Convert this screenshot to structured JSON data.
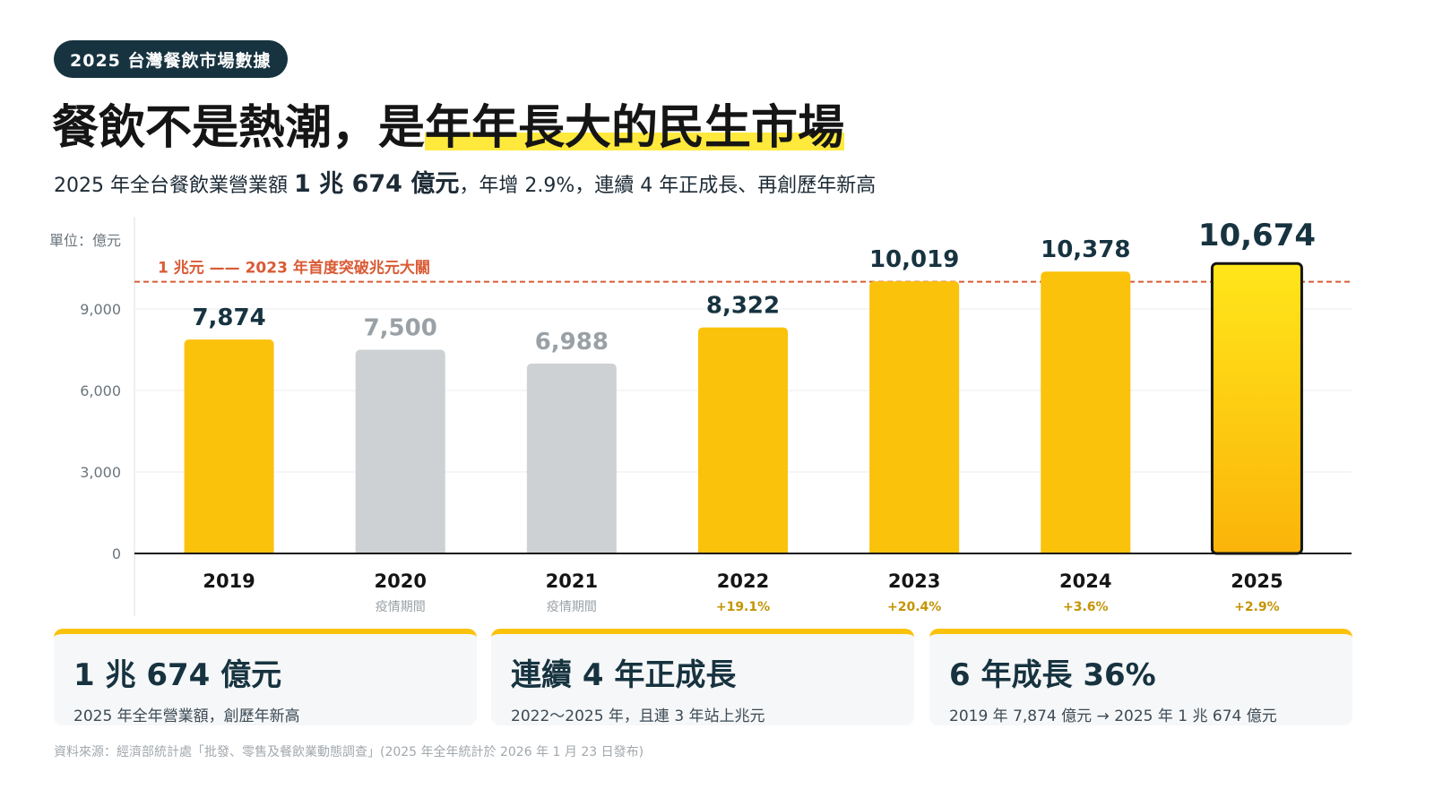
{
  "badge": "2025 台灣餐飲市場數據",
  "headline": {
    "part1": "餐飲不是熱潮，是",
    "highlight": "年年長大的民生市場"
  },
  "subtitle": {
    "prefix": "2025 年全台餐飲業營業額 ",
    "strong": "1 兆 674 億元",
    "suffix": "，年增 2.9%，連續 4 年正成長、再創歷年新高"
  },
  "chart_data": {
    "type": "bar",
    "unit_label": "單位：億元",
    "categories": [
      "2019",
      "2020",
      "2021",
      "2022",
      "2023",
      "2024",
      "2025"
    ],
    "values": [
      7874,
      7500,
      6988,
      8322,
      10019,
      10378,
      10674
    ],
    "value_labels": [
      "7,874",
      "7,500",
      "6,988",
      "8,322",
      "10,019",
      "10,378",
      "10,674"
    ],
    "sublabels": [
      "",
      "疫情期間",
      "疫情期間",
      "+19.1%",
      "+20.4%",
      "+3.6%",
      "+2.9%"
    ],
    "bar_kind": [
      "normal",
      "covid",
      "covid",
      "normal",
      "normal",
      "normal",
      "highlight"
    ],
    "ylim": [
      0,
      12000
    ],
    "yticks": [
      0,
      3000,
      6000,
      9000
    ],
    "ytick_labels": [
      "0",
      "3,000",
      "6,000",
      "9,000"
    ],
    "grid": true,
    "reference_line": {
      "value": 10000,
      "label": "1 兆元 —— 2023 年首度突破兆元大關"
    },
    "colors": {
      "bar": "#fbc20c",
      "covid": "#cdd1d3",
      "highlight_top": "#ffe61a",
      "highlight_bottom": "#fbb40a",
      "reference": "#d95b35",
      "growth": "#c49405"
    }
  },
  "cards": [
    {
      "title": "1 兆 674 億元",
      "desc": "2025 年全年營業額，創歷年新高"
    },
    {
      "title": "連續 4 年正成長",
      "desc": "2022～2025 年，且連 3 年站上兆元"
    },
    {
      "title": "6 年成長 36%",
      "desc": "2019 年 7,874 億元 → 2025 年 1 兆 674 億元"
    }
  ],
  "source": "資料來源：經濟部統計處「批發、零售及餐飲業動態調查」(2025 年全年統計於 2026 年 1 月 23 日發布)"
}
